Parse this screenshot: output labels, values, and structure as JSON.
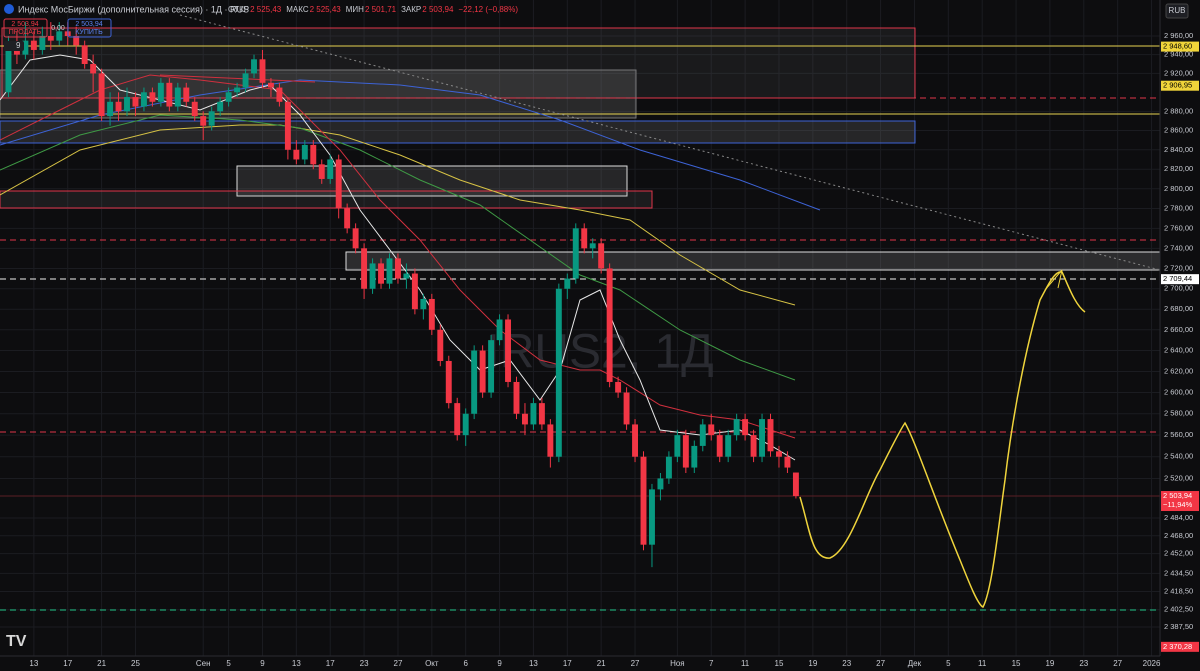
{
  "chart_data": {
    "type": "candlestick",
    "title": "Индекс МосБиржи (дополнительная сессия) · 1Д · RUS",
    "legend_fields": [
      {
        "key": "ОТКР",
        "text": "2 525,43"
      },
      {
        "key": "МАКС",
        "text": "2 525,43"
      },
      {
        "key": "МИН",
        "text": "2 501,71"
      },
      {
        "key": "ЗАКР",
        "text": "2 503,94"
      }
    ],
    "change": "−22,12 (−0,88%)",
    "sell": {
      "price": "2 503,94",
      "label": "ПРОДАТЬ"
    },
    "spread": "0,00",
    "buy": {
      "price": "2 503,94",
      "label": "КУПИТЬ"
    },
    "indicator_count": "9",
    "watermark": "IRUS2, 1Д",
    "currency": "RUB",
    "log_scale": true,
    "up_color": "#089981",
    "down_color": "#f23645",
    "ylim": [
      2362.4,
      2999
    ],
    "yticks": [
      {
        "value": 2960,
        "label": "2 960,00"
      },
      {
        "value": 2940,
        "label": "2 940,00"
      },
      {
        "value": 2920,
        "label": "2 920,00"
      },
      {
        "value": 2880,
        "label": "2 880,00"
      },
      {
        "value": 2860,
        "label": "2 860,00"
      },
      {
        "value": 2840,
        "label": "2 840,00"
      },
      {
        "value": 2820,
        "label": "2 820,00"
      },
      {
        "value": 2800,
        "label": "2 800,00"
      },
      {
        "value": 2780,
        "label": "2 780,00"
      },
      {
        "value": 2760,
        "label": "2 760,00"
      },
      {
        "value": 2740,
        "label": "2 740,00"
      },
      {
        "value": 2720,
        "label": "2 720,00"
      },
      {
        "value": 2700,
        "label": "2 700,00"
      },
      {
        "value": 2680,
        "label": "2 680,00"
      },
      {
        "value": 2660,
        "label": "2 660,00"
      },
      {
        "value": 2640,
        "label": "2 640,00"
      },
      {
        "value": 2620,
        "label": "2 620,00"
      },
      {
        "value": 2600,
        "label": "2 600,00"
      },
      {
        "value": 2580,
        "label": "2 580,00"
      },
      {
        "value": 2560,
        "label": "2 560,00"
      },
      {
        "value": 2540,
        "label": "2 540,00"
      },
      {
        "value": 2520,
        "label": "2 520,00"
      },
      {
        "value": 2484,
        "label": "2 484,00"
      },
      {
        "value": 2468,
        "label": "2 468,00"
      },
      {
        "value": 2452,
        "label": "2 452,00"
      },
      {
        "value": 2434.5,
        "label": "2 434,50"
      },
      {
        "value": 2418.5,
        "label": "2 418,50"
      },
      {
        "value": 2402.5,
        "label": "2 402,50"
      },
      {
        "value": 2387.5,
        "label": "2 387,50"
      }
    ],
    "price_labels": [
      {
        "value": 2948.6,
        "label": "2 948,60",
        "color": "#f0d43a"
      },
      {
        "value": 2906.95,
        "label": "2 906,95",
        "color": "#f0d43a"
      },
      {
        "value": 2709.44,
        "label": "2 709,44",
        "color": "#ffffff"
      },
      {
        "value": 2503.94,
        "label": "2 503,94",
        "sub": "−11,94%",
        "color": "#f23645"
      },
      {
        "value": 2370.28,
        "label": "2 370,28",
        "color": "#f23645"
      }
    ],
    "xlim": [
      -1,
      136
    ],
    "xticks": [
      {
        "value": 3,
        "label": "13"
      },
      {
        "value": 7,
        "label": "17"
      },
      {
        "value": 11,
        "label": "21"
      },
      {
        "value": 15,
        "label": "25"
      },
      {
        "value": 23,
        "label": "Сен"
      },
      {
        "value": 26,
        "label": "5"
      },
      {
        "value": 30,
        "label": "9"
      },
      {
        "value": 34,
        "label": "13"
      },
      {
        "value": 38,
        "label": "17"
      },
      {
        "value": 42,
        "label": "23"
      },
      {
        "value": 46,
        "label": "27"
      },
      {
        "value": 50,
        "label": "Окт"
      },
      {
        "value": 54,
        "label": "6"
      },
      {
        "value": 58,
        "label": "9"
      },
      {
        "value": 62,
        "label": "13"
      },
      {
        "value": 66,
        "label": "17"
      },
      {
        "value": 70,
        "label": "21"
      },
      {
        "value": 74,
        "label": "27"
      },
      {
        "value": 79,
        "label": "Ноя"
      },
      {
        "value": 83,
        "label": "7"
      },
      {
        "value": 87,
        "label": "11"
      },
      {
        "value": 91,
        "label": "15"
      },
      {
        "value": 95,
        "label": "19"
      },
      {
        "value": 99,
        "label": "23"
      },
      {
        "value": 103,
        "label": "27"
      },
      {
        "value": 107,
        "label": "Дек"
      },
      {
        "value": 111,
        "label": "5"
      },
      {
        "value": 115,
        "label": "11"
      },
      {
        "value": 119,
        "label": "15"
      },
      {
        "value": 123,
        "label": "19"
      },
      {
        "value": 127,
        "label": "23"
      },
      {
        "value": 131,
        "label": "27"
      },
      {
        "value": 135,
        "label": "2026"
      }
    ],
    "ohlc": [
      [
        2900,
        2960,
        2895,
        2950
      ],
      [
        2950,
        2965,
        2930,
        2940
      ],
      [
        2940,
        2975,
        2935,
        2955
      ],
      [
        2955,
        2965,
        2935,
        2945
      ],
      [
        2945,
        2970,
        2940,
        2960
      ],
      [
        2960,
        2975,
        2945,
        2955
      ],
      [
        2955,
        2975,
        2950,
        2965
      ],
      [
        2965,
        2975,
        2950,
        2960
      ],
      [
        2960,
        2970,
        2940,
        2950
      ],
      [
        2950,
        2955,
        2925,
        2930
      ],
      [
        2930,
        2940,
        2900,
        2920
      ],
      [
        2920,
        2925,
        2870,
        2875
      ],
      [
        2875,
        2900,
        2865,
        2890
      ],
      [
        2890,
        2900,
        2870,
        2880
      ],
      [
        2880,
        2905,
        2875,
        2895
      ],
      [
        2895,
        2900,
        2875,
        2885
      ],
      [
        2885,
        2905,
        2880,
        2900
      ],
      [
        2900,
        2905,
        2885,
        2890
      ],
      [
        2890,
        2915,
        2885,
        2910
      ],
      [
        2910,
        2915,
        2880,
        2885
      ],
      [
        2885,
        2910,
        2880,
        2905
      ],
      [
        2905,
        2910,
        2885,
        2890
      ],
      [
        2890,
        2895,
        2870,
        2875
      ],
      [
        2875,
        2880,
        2850,
        2865
      ],
      [
        2865,
        2885,
        2860,
        2880
      ],
      [
        2880,
        2895,
        2875,
        2890
      ],
      [
        2890,
        2905,
        2885,
        2900
      ],
      [
        2900,
        2910,
        2895,
        2905
      ],
      [
        2905,
        2925,
        2900,
        2920
      ],
      [
        2920,
        2940,
        2915,
        2935
      ],
      [
        2935,
        2945,
        2905,
        2910
      ],
      [
        2910,
        2915,
        2895,
        2905
      ],
      [
        2905,
        2910,
        2885,
        2890
      ],
      [
        2890,
        2895,
        2830,
        2840
      ],
      [
        2840,
        2850,
        2825,
        2830
      ],
      [
        2830,
        2850,
        2825,
        2845
      ],
      [
        2845,
        2850,
        2820,
        2825
      ],
      [
        2825,
        2830,
        2805,
        2810
      ],
      [
        2810,
        2835,
        2805,
        2830
      ],
      [
        2830,
        2835,
        2770,
        2780
      ],
      [
        2780,
        2785,
        2755,
        2760
      ],
      [
        2760,
        2765,
        2735,
        2740
      ],
      [
        2740,
        2745,
        2690,
        2700
      ],
      [
        2700,
        2730,
        2695,
        2725
      ],
      [
        2725,
        2730,
        2700,
        2705
      ],
      [
        2705,
        2735,
        2700,
        2730
      ],
      [
        2730,
        2735,
        2705,
        2710
      ],
      [
        2710,
        2725,
        2700,
        2715
      ],
      [
        2715,
        2720,
        2675,
        2680
      ],
      [
        2680,
        2695,
        2670,
        2690
      ],
      [
        2690,
        2695,
        2655,
        2660
      ],
      [
        2660,
        2665,
        2625,
        2630
      ],
      [
        2630,
        2635,
        2585,
        2590
      ],
      [
        2590,
        2595,
        2555,
        2560
      ],
      [
        2560,
        2585,
        2550,
        2580
      ],
      [
        2580,
        2645,
        2575,
        2640
      ],
      [
        2640,
        2645,
        2595,
        2600
      ],
      [
        2600,
        2655,
        2595,
        2650
      ],
      [
        2650,
        2675,
        2645,
        2670
      ],
      [
        2670,
        2675,
        2605,
        2610
      ],
      [
        2610,
        2615,
        2575,
        2580
      ],
      [
        2580,
        2590,
        2560,
        2570
      ],
      [
        2570,
        2595,
        2565,
        2590
      ],
      [
        2590,
        2595,
        2565,
        2570
      ],
      [
        2570,
        2575,
        2530,
        2540
      ],
      [
        2540,
        2705,
        2535,
        2700
      ],
      [
        2700,
        2715,
        2690,
        2710
      ],
      [
        2710,
        2765,
        2705,
        2760
      ],
      [
        2760,
        2765,
        2735,
        2740
      ],
      [
        2740,
        2750,
        2730,
        2745
      ],
      [
        2745,
        2750,
        2715,
        2720
      ],
      [
        2720,
        2725,
        2605,
        2610
      ],
      [
        2610,
        2615,
        2595,
        2600
      ],
      [
        2600,
        2605,
        2565,
        2570
      ],
      [
        2570,
        2575,
        2535,
        2540
      ],
      [
        2540,
        2545,
        2455,
        2460
      ],
      [
        2460,
        2515,
        2440,
        2510
      ],
      [
        2510,
        2525,
        2500,
        2520
      ],
      [
        2520,
        2545,
        2515,
        2540
      ],
      [
        2540,
        2565,
        2535,
        2560
      ],
      [
        2560,
        2565,
        2525,
        2530
      ],
      [
        2530,
        2555,
        2525,
        2550
      ],
      [
        2550,
        2575,
        2545,
        2570
      ],
      [
        2570,
        2580,
        2555,
        2560
      ],
      [
        2560,
        2565,
        2535,
        2540
      ],
      [
        2540,
        2565,
        2535,
        2560
      ],
      [
        2560,
        2580,
        2555,
        2575
      ],
      [
        2575,
        2580,
        2555,
        2560
      ],
      [
        2560,
        2565,
        2535,
        2540
      ],
      [
        2540,
        2580,
        2535,
        2575
      ],
      [
        2575,
        2580,
        2540,
        2545
      ],
      [
        2545,
        2550,
        2530,
        2540
      ],
      [
        2540,
        2545,
        2525,
        2530
      ],
      [
        2525.43,
        2525.43,
        2501.71,
        2503.94
      ]
    ]
  }
}
